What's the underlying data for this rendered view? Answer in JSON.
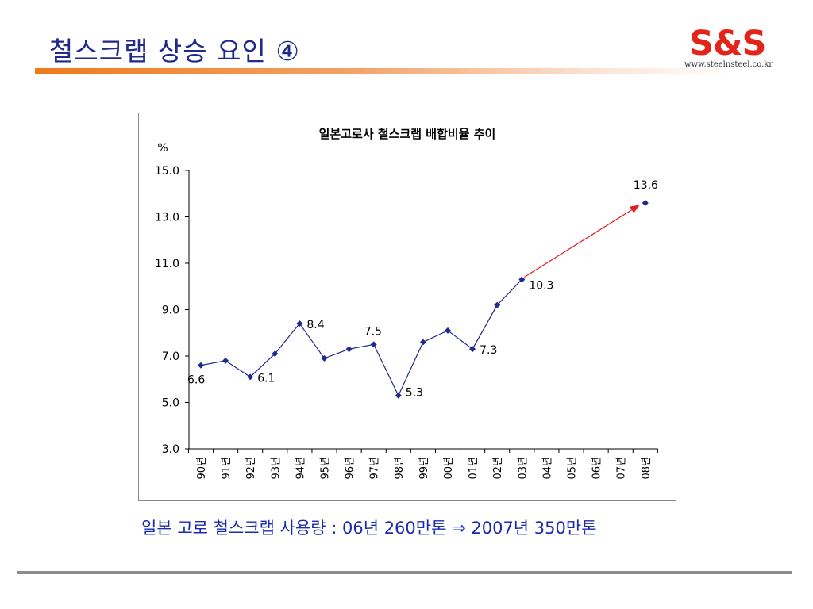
{
  "slide": {
    "title": "철스크랩 상승 요인 ④",
    "logo_text": "S&S",
    "logo_url": "www.steelnsteel.co.kr",
    "caption": "일본 고로 철스크랩 사용량 : 06년 260만톤 ⇒ 2007년 350만톤"
  },
  "colors": {
    "title": "#1f2a8a",
    "accent_orange": "#f07a1a",
    "logo_red": "#e2251b",
    "series_line": "#1f2a8a",
    "arrow": "#e02020",
    "caption": "#1a2bb0"
  },
  "chart_data": {
    "type": "line",
    "title": "일본고로사 철스크랩 배합비율 추이",
    "ylabel": "%",
    "xlabel": "",
    "ylim": [
      3.0,
      15.0
    ],
    "yticks": [
      "15.0",
      "13.0",
      "11.0",
      "9.0",
      "7.0",
      "5.0",
      "3.0"
    ],
    "categories": [
      "90년",
      "91년",
      "92년",
      "93년",
      "94년",
      "95년",
      "96년",
      "97년",
      "98년",
      "99년",
      "00년",
      "01년",
      "02년",
      "03년",
      "04년",
      "05년",
      "06년",
      "07년",
      "08년"
    ],
    "series": [
      {
        "values": [
          6.6,
          6.8,
          6.1,
          7.1,
          8.4,
          6.9,
          7.3,
          7.5,
          5.3,
          7.6,
          8.1,
          7.3,
          9.2,
          10.3,
          null,
          null,
          null,
          null,
          13.6
        ]
      }
    ],
    "data_labels": [
      {
        "index": 0,
        "text": "6.6"
      },
      {
        "index": 2,
        "text": "6.1"
      },
      {
        "index": 4,
        "text": "8.4"
      },
      {
        "index": 7,
        "text": "7.5"
      },
      {
        "index": 8,
        "text": "5.3"
      },
      {
        "index": 11,
        "text": "7.3"
      },
      {
        "index": 13,
        "text": "10.3"
      },
      {
        "index": 18,
        "text": "13.6"
      }
    ],
    "arrow": {
      "from_index": 13,
      "to_index": 18
    },
    "grid": false,
    "legend": "none"
  }
}
